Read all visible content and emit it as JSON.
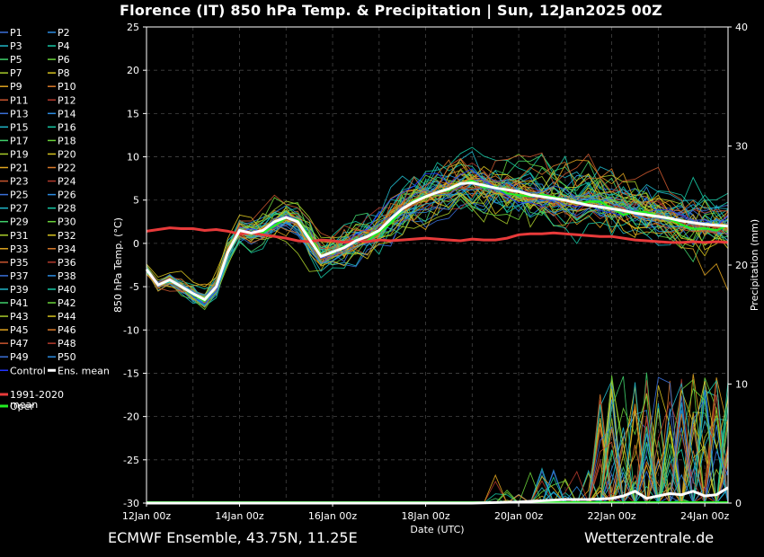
{
  "title": "Florence  (IT)  850 hPa Temp. & Precipitation | Sun, 12Jan2025 00Z",
  "footer": {
    "model": "ECMWF Ensemble, 43.75N, 11.25E",
    "source": "Wetterzentrale.de"
  },
  "chart_data": {
    "type": "line",
    "title": "Florence  (IT)  850 hPa Temp. & Precipitation | Sun, 12Jan2025 00Z",
    "xlabel": "Date (UTC)",
    "ylabel": "850 hPa Temp. (°C)",
    "y2label": "Precipitation (mm)",
    "xlim_days": [
      0,
      12.5
    ],
    "ylim": [
      -30,
      25
    ],
    "y2lim": [
      0,
      40
    ],
    "x_ticks": [
      {
        "day": 0,
        "label": "12Jan 00z"
      },
      {
        "day": 2,
        "label": "14Jan 00z"
      },
      {
        "day": 4,
        "label": "16Jan 00z"
      },
      {
        "day": 6,
        "label": "18Jan 00z"
      },
      {
        "day": 8,
        "label": "20Jan 00z"
      },
      {
        "day": 10,
        "label": "22Jan 00z"
      },
      {
        "day": 12,
        "label": "24Jan 00z"
      }
    ],
    "y_ticks": [
      25,
      20,
      15,
      10,
      5,
      0,
      -5,
      -10,
      -15,
      -20,
      -25,
      -30
    ],
    "y2_ticks": [
      40,
      30,
      20,
      10,
      0
    ],
    "grid": true,
    "legend_position": "left outside",
    "legend": [
      "P1",
      "P2",
      "P3",
      "P4",
      "P5",
      "P6",
      "P7",
      "P8",
      "P9",
      "P10",
      "P11",
      "P12",
      "P13",
      "P14",
      "P15",
      "P16",
      "P17",
      "P18",
      "P19",
      "P20",
      "P21",
      "P22",
      "P23",
      "P24",
      "P25",
      "P26",
      "P27",
      "P28",
      "P29",
      "P30",
      "P31",
      "P32",
      "P33",
      "P34",
      "P35",
      "P36",
      "P37",
      "P38",
      "P39",
      "P40",
      "P41",
      "P42",
      "P43",
      "P44",
      "P45",
      "P46",
      "P47",
      "P48",
      "P49",
      "P50",
      "Control",
      "Ens. mean",
      "1991-2020\nmean",
      "",
      "Oper"
    ],
    "member_colors": [
      "#3a6fd8",
      "#2b8be0",
      "#20b7c9",
      "#17c9a5",
      "#3fd06a",
      "#6ad23a",
      "#a8cc2a",
      "#d6c21f",
      "#e0a41f",
      "#d97a2a",
      "#c8552e",
      "#b23a2c"
    ],
    "series": [
      {
        "name": "Ens. mean",
        "color": "#ffffff",
        "x": [
          0,
          0.25,
          0.5,
          0.75,
          1,
          1.25,
          1.5,
          1.75,
          2,
          2.25,
          2.5,
          2.75,
          3,
          3.25,
          3.5,
          3.75,
          4,
          4.25,
          4.5,
          4.75,
          5,
          5.25,
          5.5,
          5.75,
          6,
          6.25,
          6.5,
          6.75,
          7,
          7.25,
          7.5,
          7.75,
          8,
          8.25,
          8.5,
          8.75,
          9,
          9.25,
          9.5,
          9.75,
          10,
          10.25,
          10.5,
          10.75,
          11,
          11.25,
          11.5,
          11.75,
          12,
          12.25,
          12.5
        ],
        "y": [
          -3,
          -4.8,
          -4.2,
          -5,
          -5.8,
          -6.5,
          -5,
          -1,
          1.5,
          1.2,
          1.5,
          2.5,
          3,
          2.5,
          0.5,
          -1.5,
          -1,
          -0.5,
          0.3,
          0.8,
          1.5,
          2.8,
          4,
          4.8,
          5.4,
          5.9,
          6.3,
          6.9,
          7,
          6.7,
          6.4,
          6.2,
          6,
          5.6,
          5.4,
          5.2,
          5,
          4.7,
          4.4,
          4.2,
          4,
          3.8,
          3.5,
          3.3,
          3.1,
          2.9,
          2.6,
          2.4,
          2.2,
          2.1,
          2
        ]
      },
      {
        "name": "1991-2020\nmean",
        "color": "#e83a3a",
        "x": [
          0,
          0.25,
          0.5,
          0.75,
          1,
          1.25,
          1.5,
          1.75,
          2,
          2.25,
          2.5,
          2.75,
          3,
          3.25,
          3.5,
          3.75,
          4,
          4.25,
          4.5,
          4.75,
          5,
          5.25,
          5.5,
          5.75,
          6,
          6.25,
          6.5,
          6.75,
          7,
          7.25,
          7.5,
          7.75,
          8,
          8.25,
          8.5,
          8.75,
          9,
          9.25,
          9.5,
          9.75,
          10,
          10.25,
          10.5,
          10.75,
          11,
          11.25,
          11.5,
          11.75,
          12,
          12.25,
          12.5
        ],
        "y": [
          1.4,
          1.6,
          1.8,
          1.7,
          1.7,
          1.5,
          1.6,
          1.4,
          1.1,
          1.2,
          1,
          0.8,
          0.6,
          0.3,
          0.2,
          0.4,
          0.3,
          0.1,
          0.3,
          0.2,
          0.4,
          0.3,
          0.4,
          0.5,
          0.6,
          0.5,
          0.4,
          0.3,
          0.5,
          0.4,
          0.4,
          0.6,
          1.0,
          1.1,
          1.1,
          1.2,
          1.1,
          1.0,
          0.9,
          0.8,
          0.8,
          0.6,
          0.4,
          0.3,
          0.2,
          0.1,
          0.1,
          0.2,
          0.1,
          0.2,
          0.1
        ]
      },
      {
        "name": "Ens. mean precipitation (mm)",
        "color": "#ffffff",
        "x": [
          0,
          1,
          2,
          3,
          4,
          5,
          6,
          7,
          8,
          8.5,
          9,
          9.5,
          10,
          10.25,
          10.5,
          10.75,
          11,
          11.25,
          11.5,
          11.75,
          12,
          12.25,
          12.5
        ],
        "y": [
          0,
          0,
          0,
          0,
          0,
          0,
          0,
          0,
          0.1,
          0.2,
          0.3,
          0.3,
          0.4,
          0.6,
          1,
          0.4,
          0.6,
          0.8,
          0.7,
          1.0,
          0.6,
          0.7,
          1.3
        ]
      }
    ]
  }
}
